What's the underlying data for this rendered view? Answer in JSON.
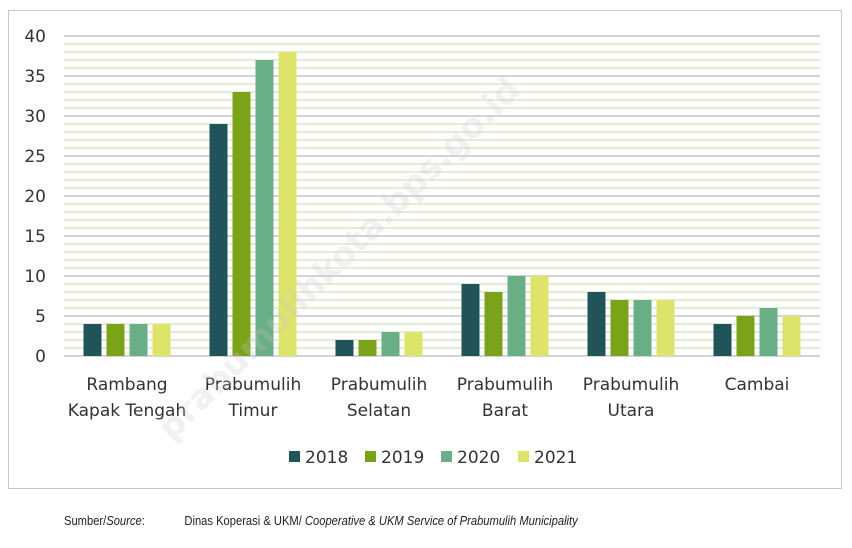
{
  "chart_data": {
    "type": "bar",
    "title": "",
    "xlabel": "",
    "ylabel": "",
    "ylim": [
      0,
      40
    ],
    "yticks": [
      0,
      5,
      10,
      15,
      20,
      25,
      30,
      35,
      40
    ],
    "grid": true,
    "legend_position": "bottom",
    "categories": [
      [
        "Rambang",
        "Kapak Tengah"
      ],
      [
        "Prabumulih",
        "Timur"
      ],
      [
        "Prabumulih",
        "Selatan"
      ],
      [
        "Prabumulih",
        "Barat"
      ],
      [
        "Prabumulih",
        "Utara"
      ],
      [
        "Cambai"
      ]
    ],
    "series": [
      {
        "name": "2018",
        "color": "#215459",
        "values": [
          4,
          29,
          2,
          9,
          8,
          4
        ]
      },
      {
        "name": "2019",
        "color": "#7aa31a",
        "values": [
          4,
          33,
          2,
          8,
          7,
          5
        ]
      },
      {
        "name": "2020",
        "color": "#6aae86",
        "values": [
          4,
          37,
          3,
          10,
          7,
          6
        ]
      },
      {
        "name": "2021",
        "color": "#dee36a",
        "values": [
          4,
          38,
          3,
          10,
          7,
          5
        ]
      }
    ]
  },
  "source": {
    "label_prefix": "Sumber/",
    "label_italic": "Source",
    "label_colon": ":",
    "text": "Dinas Koperasi & UKM/ ",
    "text_italic": "Cooperative & UKM Service of Prabumulih Municipality"
  },
  "watermark": "prabumulihkota.bps.go.id"
}
